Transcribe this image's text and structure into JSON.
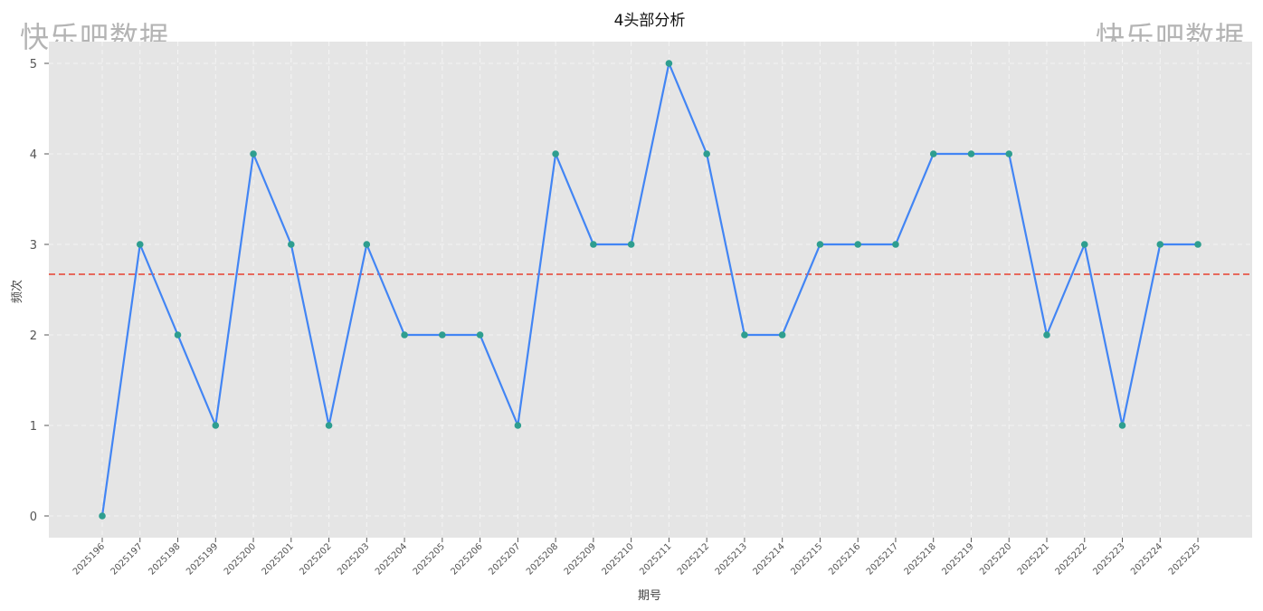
{
  "watermark": {
    "left": "快乐吧数据",
    "right": "快乐吧数据"
  },
  "chart_data": {
    "type": "line",
    "title": "4头部分析",
    "xlabel": "期号",
    "ylabel": "频次",
    "categories": [
      "2025196",
      "2025197",
      "2025198",
      "2025199",
      "2025200",
      "2025201",
      "2025202",
      "2025203",
      "2025204",
      "2025205",
      "2025206",
      "2025207",
      "2025208",
      "2025209",
      "2025210",
      "2025211",
      "2025212",
      "2025213",
      "2025214",
      "2025215",
      "2025216",
      "2025217",
      "2025218",
      "2025219",
      "2025220",
      "2025221",
      "2025222",
      "2025223",
      "2025224",
      "2025225"
    ],
    "values": [
      0,
      3,
      2,
      1,
      4,
      3,
      1,
      3,
      2,
      2,
      2,
      1,
      4,
      3,
      3,
      5,
      4,
      2,
      2,
      3,
      3,
      3,
      4,
      4,
      4,
      2,
      3,
      1,
      3,
      3
    ],
    "yticks": [
      0,
      1,
      2,
      3,
      4,
      5
    ],
    "reference_line": 2.67,
    "grid": true,
    "colors": {
      "line": "#4285f4",
      "marker": "#2e9e8f",
      "reference": "#e8402f",
      "plot_bg": "#e5e5e5",
      "grid": "#f4f4f4"
    }
  }
}
